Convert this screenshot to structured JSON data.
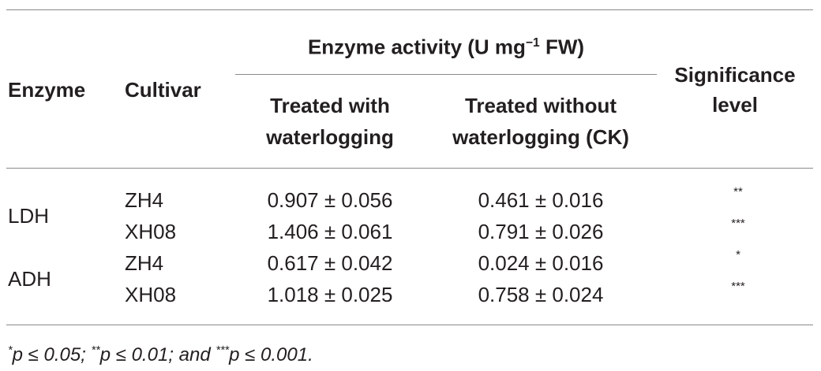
{
  "header": {
    "enzyme": "Enzyme",
    "cultivar": "Cultivar",
    "group_title": {
      "text": "Enzyme activity (U mg",
      "sup": "−1",
      "tail": " FW)"
    },
    "treated": [
      "Treated with",
      "waterlogging"
    ],
    "control": [
      "Treated without",
      "waterlogging (CK)"
    ],
    "significance": [
      "Significance",
      "level"
    ]
  },
  "table": {
    "groups": [
      {
        "enzyme": "LDH",
        "rows": [
          [
            "ZH4",
            "0.907 ± 0.056",
            "0.461 ± 0.016",
            "**"
          ],
          [
            "XH08",
            "1.406 ± 0.061",
            "0.791 ± 0.026",
            "***"
          ]
        ]
      },
      {
        "enzyme": "ADH",
        "rows": [
          [
            "ZH4",
            "0.617 ± 0.042",
            "0.024 ± 0.016",
            "*"
          ],
          [
            "XH08",
            "1.018 ± 0.025",
            "0.758 ± 0.024",
            "***"
          ]
        ]
      }
    ]
  },
  "footnote": [
    {
      "mark": "*",
      "text": "p ≤ 0.05; "
    },
    {
      "mark": "**",
      "text": "p ≤ 0.01; and "
    },
    {
      "mark": "***",
      "text": "p ≤ 0.001."
    }
  ]
}
